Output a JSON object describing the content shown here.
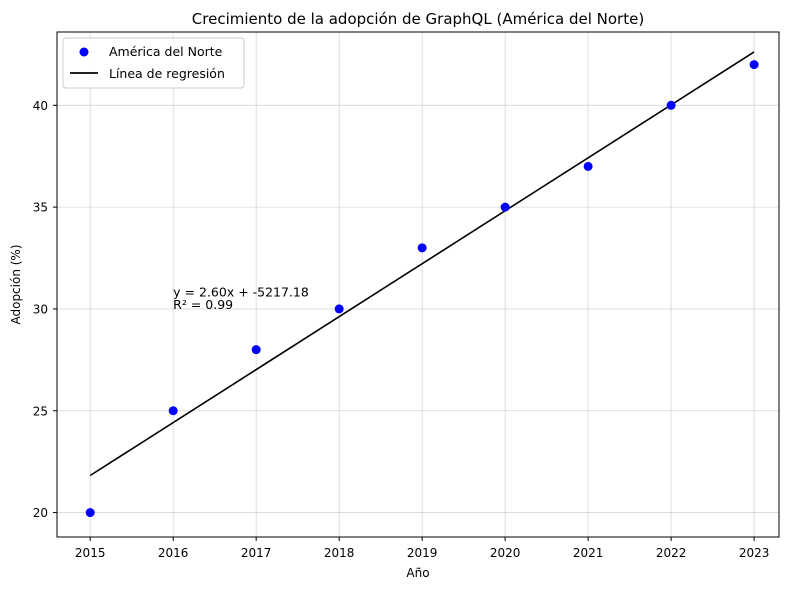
{
  "chart_data": {
    "type": "scatter",
    "title": "Crecimiento de la adopción de GraphQL (América del Norte)",
    "xlabel": "Año",
    "ylabel": "Adopción (%)",
    "xlim": [
      2014.6,
      2023.3
    ],
    "ylim": [
      18.8,
      43.6
    ],
    "xticks": [
      2015,
      2016,
      2017,
      2018,
      2019,
      2020,
      2021,
      2022,
      2023
    ],
    "yticks": [
      20,
      25,
      30,
      35,
      40
    ],
    "grid": true,
    "legend_position": "top-left",
    "series": [
      {
        "name": "América del Norte",
        "kind": "scatter",
        "color": "#0000ff",
        "x": [
          2015,
          2016,
          2017,
          2018,
          2019,
          2020,
          2021,
          2022,
          2023
        ],
        "y": [
          20,
          25,
          28,
          30,
          33,
          35,
          37,
          40,
          42
        ]
      },
      {
        "name": "Línea de regresión",
        "kind": "line",
        "color": "#000000",
        "slope": 2.6,
        "intercept": -5217.18,
        "x": [
          2015,
          2023
        ],
        "y": [
          21.82,
          42.62
        ]
      }
    ],
    "annotations": [
      {
        "text": "y = 2.60x + -5217.18",
        "x": 2016,
        "y": 30.8
      },
      {
        "text": "R² = 0.99",
        "x": 2016,
        "y": 30.2
      }
    ]
  }
}
